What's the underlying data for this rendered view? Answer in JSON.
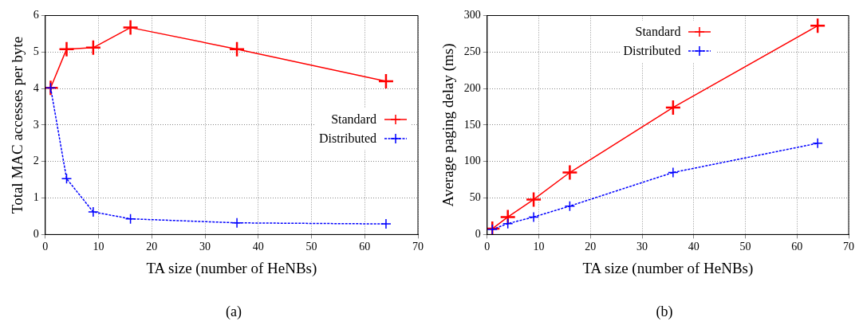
{
  "chart_data": [
    {
      "type": "line",
      "xlabel": "TA size (number of HeNBs)",
      "ylabel": "Total MAC accesses per byte",
      "x": [
        1,
        4,
        9,
        16,
        36,
        64
      ],
      "series": [
        {
          "name": "Standard",
          "color": "#ff0000",
          "values": [
            4.02,
            5.08,
            5.12,
            5.67,
            5.08,
            4.2
          ],
          "marker": "cross",
          "line_style": "solid"
        },
        {
          "name": "Distributed",
          "color": "#0000ff",
          "values": [
            4.02,
            1.53,
            0.62,
            0.43,
            0.32,
            0.29
          ],
          "marker": "cross",
          "line_style": "dashed"
        }
      ],
      "xlim": [
        0,
        70
      ],
      "xticks": [
        0,
        10,
        20,
        30,
        40,
        50,
        60,
        70
      ],
      "ylim": [
        0,
        6
      ],
      "yticks": [
        0,
        1,
        2,
        3,
        4,
        5,
        6
      ],
      "grid": true,
      "legend": "right",
      "annotations": [
        "(a)"
      ]
    },
    {
      "type": "line",
      "xlabel": "TA size (number of HeNBs)",
      "ylabel": "Average paging delay (ms)",
      "x": [
        1,
        4,
        9,
        16,
        36,
        64
      ],
      "series": [
        {
          "name": "Standard",
          "color": "#ff0000",
          "values": [
            8,
            24,
            48,
            85,
            174,
            286
          ],
          "marker": "cross",
          "line_style": "solid"
        },
        {
          "name": "Distributed",
          "color": "#0000ff",
          "values": [
            7,
            15,
            24,
            39,
            85,
            125
          ],
          "marker": "cross",
          "line_style": "dashed"
        }
      ],
      "xlim": [
        0,
        70
      ],
      "xticks": [
        0,
        10,
        20,
        30,
        40,
        50,
        60,
        70
      ],
      "ylim": [
        0,
        300
      ],
      "yticks": [
        0,
        50,
        100,
        150,
        200,
        250,
        300
      ],
      "grid": true,
      "legend": "top",
      "annotations": [
        "(b)"
      ]
    }
  ]
}
